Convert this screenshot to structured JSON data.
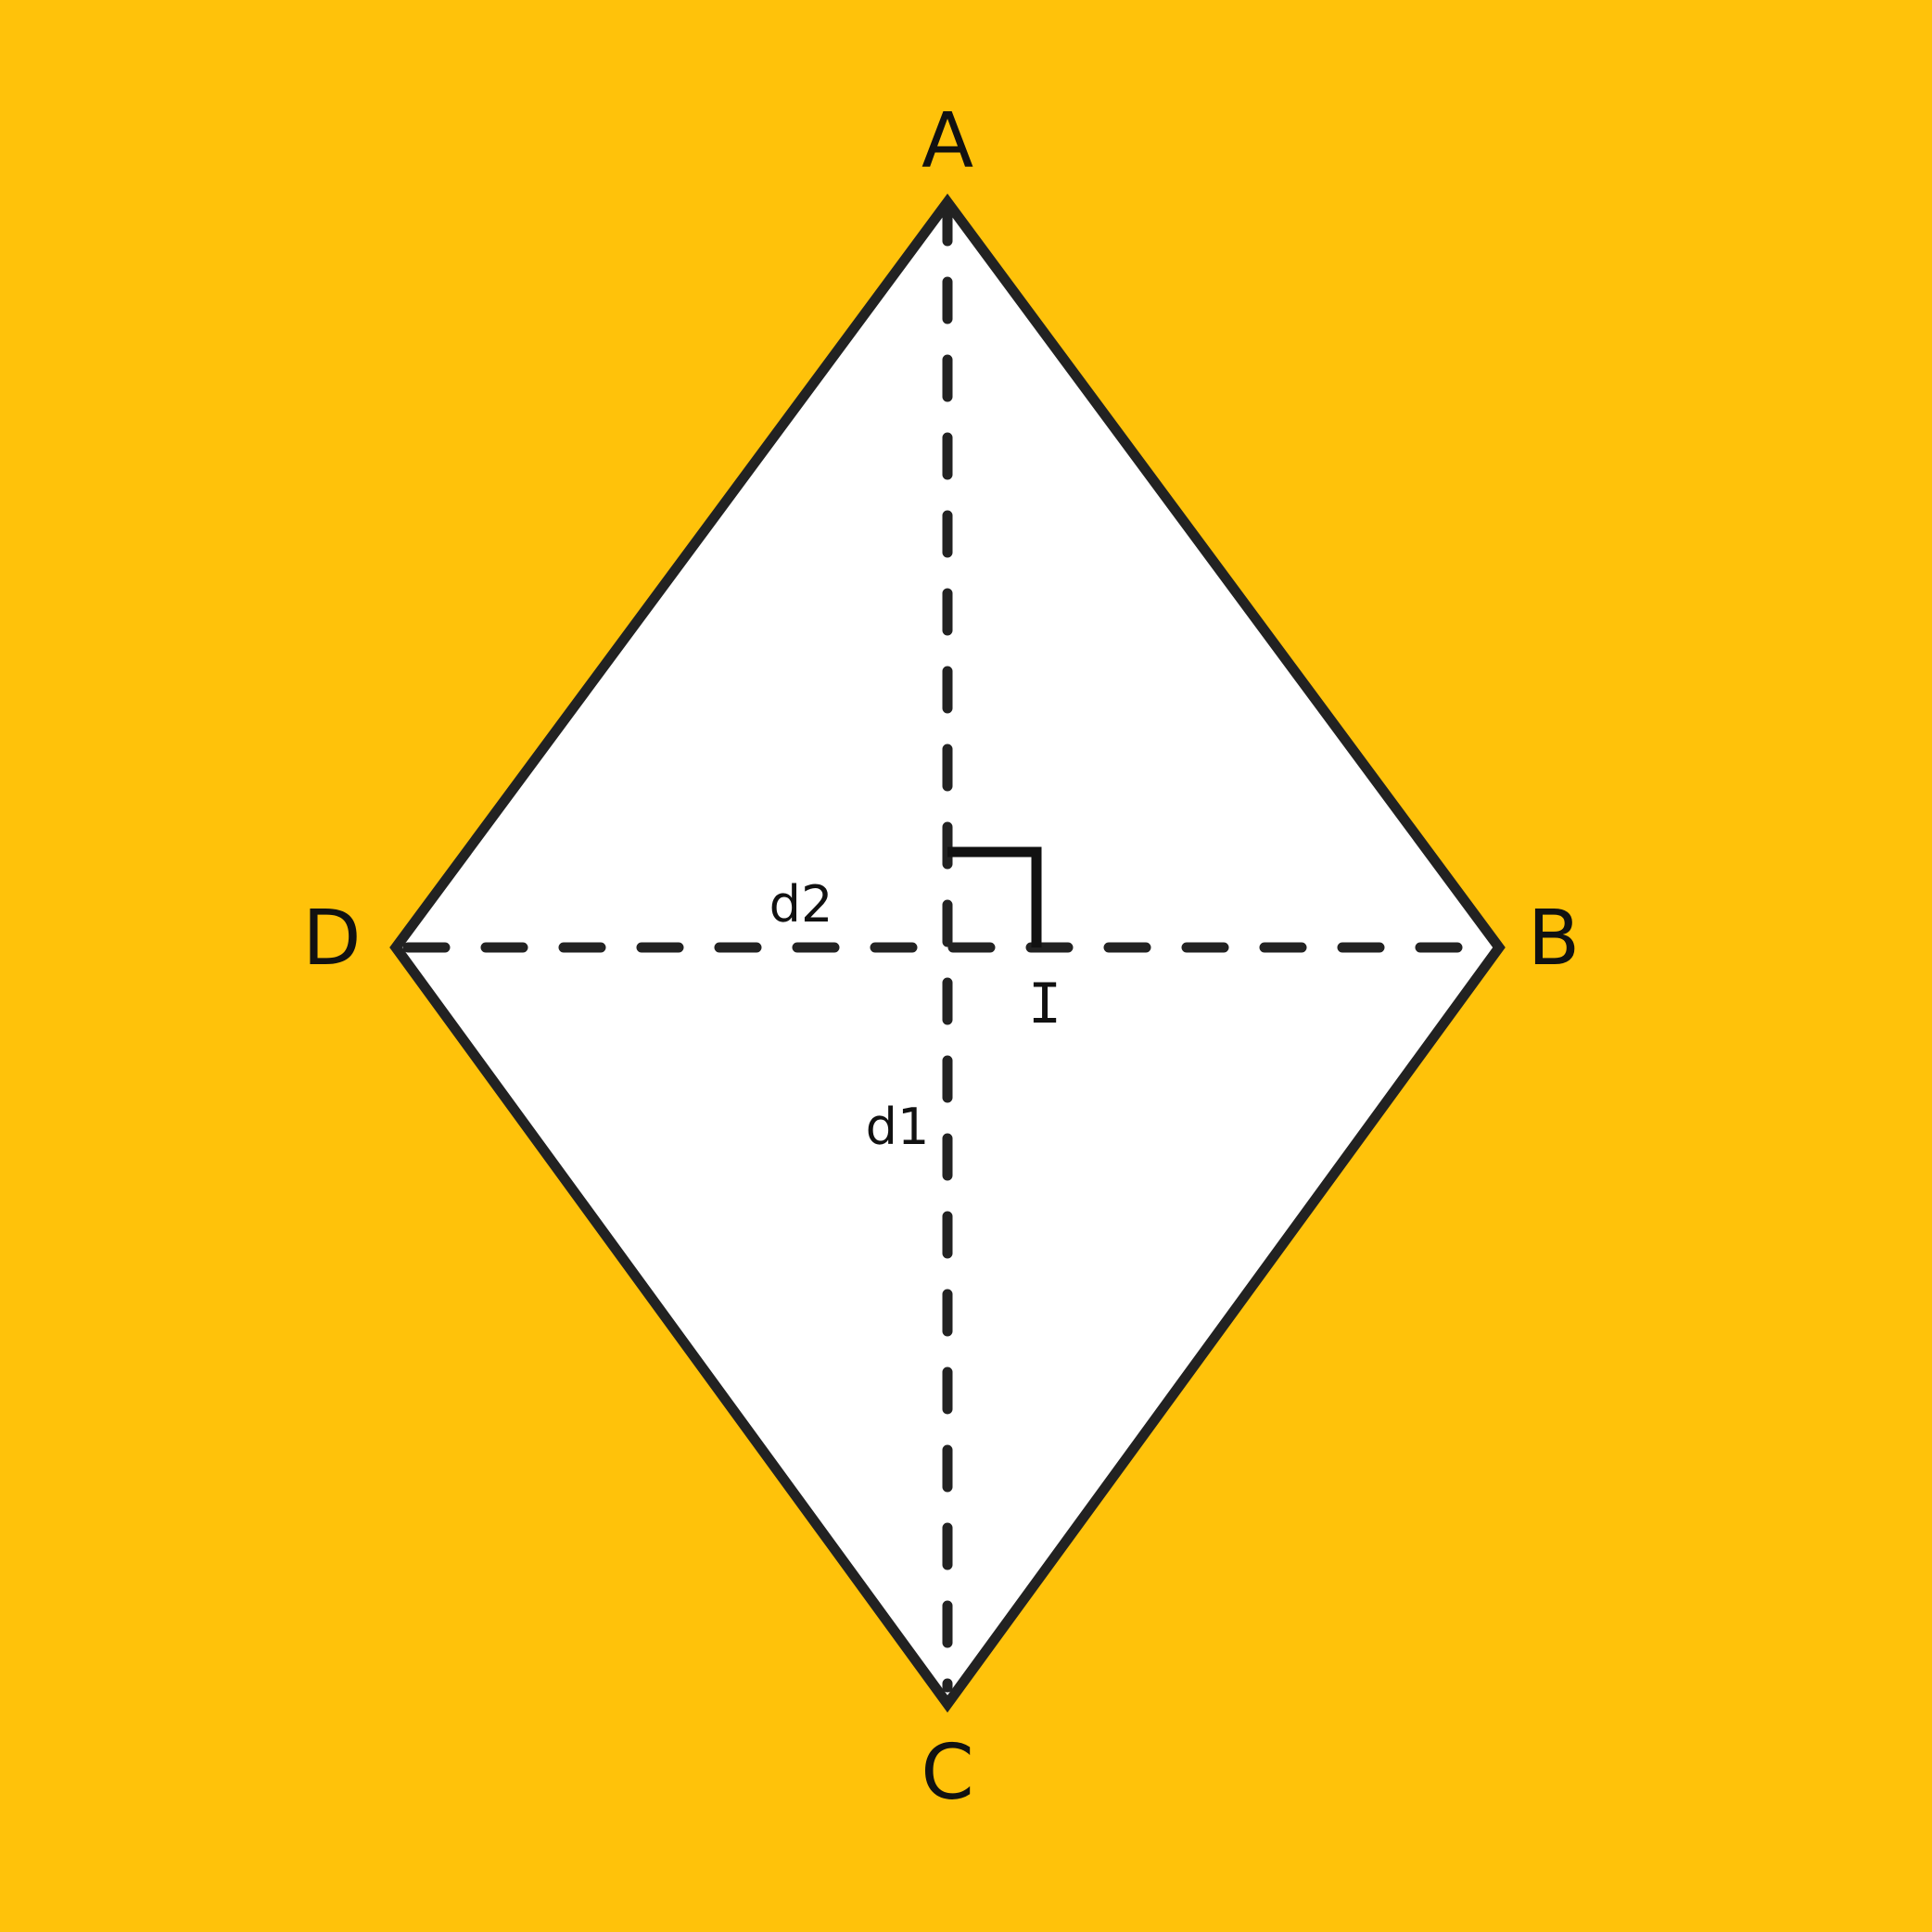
{
  "diagram": {
    "background_color": "#FFC20A",
    "shape_fill": "#FFFFFF",
    "stroke_color": "#222222",
    "vertices": {
      "A": "A",
      "B": "B",
      "C": "C",
      "D": "D"
    },
    "center_label": "I",
    "diagonals": {
      "vertical": "d1",
      "horizontal": "d2"
    }
  }
}
